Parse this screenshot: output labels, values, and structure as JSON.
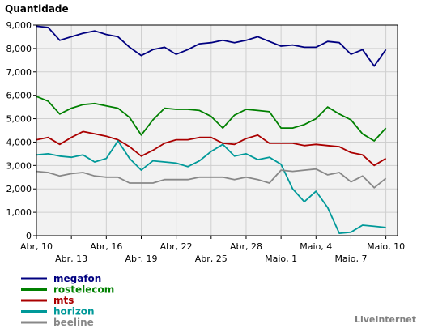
{
  "chart_data": {
    "type": "line",
    "title": "",
    "ylabel": "Quantidade",
    "xlabel": "",
    "ylim": [
      0,
      9000
    ],
    "yticks": [
      0,
      1000,
      2000,
      3000,
      4000,
      5000,
      6000,
      7000,
      8000,
      9000
    ],
    "ytick_labels": [
      "0",
      "1,000",
      "2,000",
      "3,000",
      "4,000",
      "5,000",
      "6,000",
      "7,000",
      "8,000",
      "9,000"
    ],
    "x_count": 32,
    "xticks": [
      {
        "index": 0,
        "label": "Abr, 10",
        "row": 0
      },
      {
        "index": 3,
        "label": "Abr, 13",
        "row": 1
      },
      {
        "index": 6,
        "label": "Abr, 16",
        "row": 0
      },
      {
        "index": 9,
        "label": "Abr, 19",
        "row": 1
      },
      {
        "index": 12,
        "label": "Abr, 22",
        "row": 0
      },
      {
        "index": 15,
        "label": "Abr, 25",
        "row": 1
      },
      {
        "index": 18,
        "label": "Abr, 28",
        "row": 0
      },
      {
        "index": 21,
        "label": "Maio, 1",
        "row": 1
      },
      {
        "index": 24,
        "label": "Maio, 4",
        "row": 0
      },
      {
        "index": 27,
        "label": "Maio, 7",
        "row": 1
      },
      {
        "index": 30,
        "label": "Maio, 10",
        "row": 0
      }
    ],
    "grid": true,
    "legend_position": "bottom-left",
    "series": [
      {
        "name": "megafon",
        "color": "#000080",
        "values": [
          8950,
          8900,
          8350,
          8500,
          8650,
          8750,
          8600,
          8500,
          8050,
          7700,
          7950,
          8050,
          7750,
          7950,
          8200,
          8250,
          8350,
          8250,
          8350,
          8500,
          8300,
          8100,
          8150,
          8050,
          8050,
          8300,
          8250,
          7750,
          7950,
          7250,
          7950
        ]
      },
      {
        "name": "rostelecom",
        "color": "#008000",
        "values": [
          5950,
          5750,
          5200,
          5450,
          5600,
          5650,
          5550,
          5450,
          5050,
          4300,
          4950,
          5450,
          5400,
          5400,
          5350,
          5100,
          4600,
          5150,
          5400,
          5350,
          5300,
          4600,
          4600,
          4750,
          5000,
          5500,
          5200,
          4950,
          4350,
          4050,
          4600
        ]
      },
      {
        "name": "mts",
        "color": "#aa0000",
        "values": [
          4100,
          4200,
          3900,
          4200,
          4450,
          4350,
          4250,
          4100,
          3800,
          3400,
          3650,
          3950,
          4100,
          4100,
          4200,
          4200,
          3950,
          3900,
          4150,
          4300,
          3950,
          3950,
          3950,
          3850,
          3900,
          3850,
          3800,
          3550,
          3450,
          3000,
          3300
        ]
      },
      {
        "name": "horizon",
        "color": "#009999",
        "values": [
          3450,
          3500,
          3400,
          3350,
          3450,
          3150,
          3300,
          4050,
          3300,
          2800,
          3200,
          3150,
          3100,
          2950,
          3200,
          3600,
          3900,
          3400,
          3500,
          3250,
          3350,
          3050,
          2000,
          1450,
          1900,
          1200,
          100,
          150,
          450,
          400,
          350
        ]
      },
      {
        "name": "beeline",
        "color": "#888888",
        "values": [
          2750,
          2700,
          2550,
          2650,
          2700,
          2550,
          2500,
          2500,
          2250,
          2250,
          2250,
          2400,
          2400,
          2400,
          2500,
          2500,
          2500,
          2400,
          2500,
          2400,
          2250,
          2800,
          2750,
          2800,
          2850,
          2600,
          2700,
          2300,
          2550,
          2050,
          2450
        ]
      }
    ]
  },
  "brand": "LiveInternet"
}
